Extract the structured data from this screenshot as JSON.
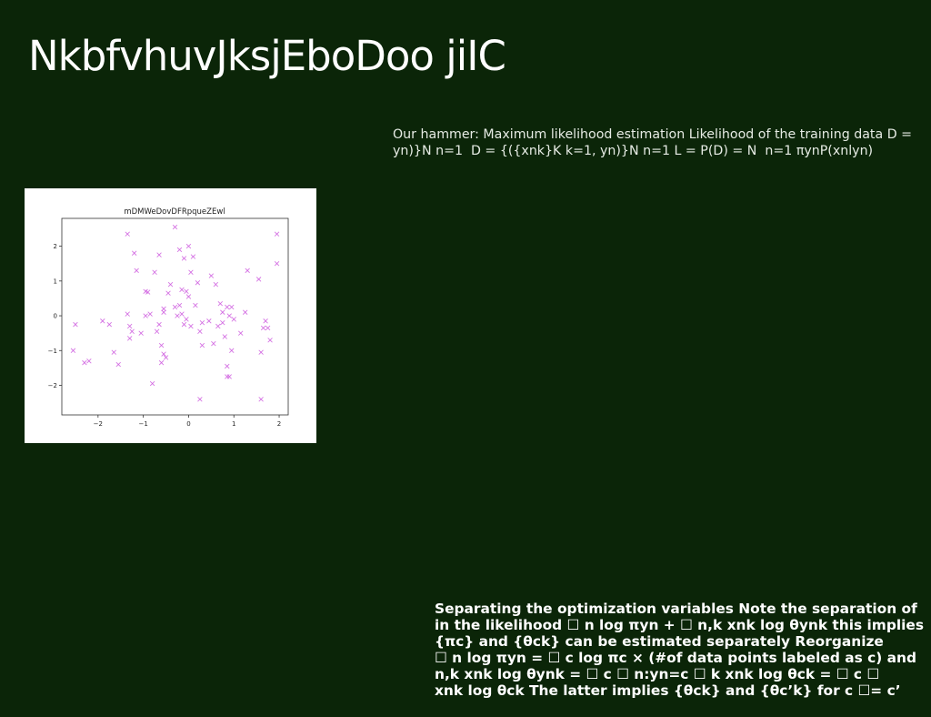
{
  "slide": {
    "title": "NkbfvhuvJksjEboDoo jiIC",
    "top_text": "Our hammer: Maximum likelihood estimation Likelihood of the training data D = yn)}N n=1 ⁠ D = {({xnk}K k=1, yn)}N n=1 L = P(D) = N ⁠ n=1 πynP(xnlyn)",
    "bottom_text_lines": [
      "Separating the optimization variables Note the separation of",
      "in the likelihood ☐ n log πyn + ☐ n,k xnk log θynk this implies",
      "{πc} and {θck} can be estimated separately Reorganize",
      "☐ n log πyn = ☐ c log πc × (#of data points labeled as c) and",
      "n,k xnk log θynk = ☐ c ☐ n:yn=c ☐ k xnk log θck = ☐ c ☐",
      "xnk log θck The latter implies {θck} and {θc’k} for c ☐= c’"
    ]
  },
  "colors": {
    "background": "#0b2508",
    "marker": "#cc55dd"
  },
  "chart_data": {
    "type": "scatter",
    "title": "mDMWeDovDFRpqueZEwl",
    "xlim": [
      -2.8,
      2.2
    ],
    "ylim": [
      -2.85,
      2.8
    ],
    "x_ticks": [
      -2,
      -1,
      0,
      1,
      2
    ],
    "y_ticks": [
      -2,
      -1,
      0,
      1,
      2
    ],
    "tick_labels_x": [
      "−2",
      "−1",
      "0",
      "1",
      "2"
    ],
    "tick_labels_y": [
      "−2",
      "−1",
      "0",
      "1",
      "2"
    ],
    "marker": "x",
    "grid": false,
    "points": [
      [
        -2.5,
        -0.25
      ],
      [
        -2.55,
        -1.0
      ],
      [
        -2.3,
        -1.35
      ],
      [
        -2.2,
        -1.3
      ],
      [
        -1.9,
        -0.15
      ],
      [
        -1.75,
        -0.25
      ],
      [
        -1.65,
        -1.05
      ],
      [
        -1.55,
        -1.4
      ],
      [
        -1.35,
        0.05
      ],
      [
        -1.3,
        -0.65
      ],
      [
        -1.3,
        -0.3
      ],
      [
        -1.25,
        -0.45
      ],
      [
        -1.2,
        1.8
      ],
      [
        -1.15,
        1.3
      ],
      [
        -1.35,
        2.35
      ],
      [
        -1.05,
        -0.5
      ],
      [
        -0.95,
        0.0
      ],
      [
        -0.95,
        0.7
      ],
      [
        -0.9,
        0.68
      ],
      [
        -0.85,
        0.05
      ],
      [
        -0.8,
        -1.95
      ],
      [
        -0.75,
        1.25
      ],
      [
        -0.7,
        -0.45
      ],
      [
        -0.65,
        1.75
      ],
      [
        -0.65,
        -0.25
      ],
      [
        -0.6,
        -0.85
      ],
      [
        -0.55,
        -1.1
      ],
      [
        -0.6,
        -1.35
      ],
      [
        -0.55,
        0.2
      ],
      [
        -0.5,
        -1.2
      ],
      [
        -0.45,
        0.65
      ],
      [
        -0.4,
        0.9
      ],
      [
        -0.3,
        2.55
      ],
      [
        -0.3,
        0.25
      ],
      [
        -0.25,
        0.0
      ],
      [
        -0.2,
        0.3
      ],
      [
        -0.2,
        1.9
      ],
      [
        -0.15,
        0.05
      ],
      [
        -0.15,
        0.75
      ],
      [
        -0.1,
        1.65
      ],
      [
        -0.05,
        0.7
      ],
      [
        0.0,
        2.0
      ],
      [
        -0.05,
        -0.1
      ],
      [
        0.05,
        1.25
      ],
      [
        0.05,
        -0.3
      ],
      [
        0.1,
        1.7
      ],
      [
        0.15,
        0.3
      ],
      [
        0.2,
        0.95
      ],
      [
        0.25,
        -0.45
      ],
      [
        0.3,
        -0.2
      ],
      [
        0.3,
        -0.85
      ],
      [
        0.25,
        -2.4
      ],
      [
        0.45,
        -0.15
      ],
      [
        0.5,
        1.15
      ],
      [
        0.55,
        -0.8
      ],
      [
        0.6,
        0.9
      ],
      [
        0.65,
        -0.3
      ],
      [
        0.7,
        0.35
      ],
      [
        0.75,
        -0.2
      ],
      [
        0.75,
        0.1
      ],
      [
        0.8,
        -0.6
      ],
      [
        0.85,
        -1.45
      ],
      [
        0.85,
        -1.75
      ],
      [
        0.9,
        -1.75
      ],
      [
        0.9,
        0.0
      ],
      [
        0.95,
        -1.0
      ],
      [
        0.95,
        0.25
      ],
      [
        1.0,
        -0.1
      ],
      [
        1.15,
        -0.5
      ],
      [
        1.25,
        0.1
      ],
      [
        1.3,
        1.3
      ],
      [
        1.55,
        1.05
      ],
      [
        1.6,
        -1.05
      ],
      [
        1.6,
        -2.4
      ],
      [
        1.65,
        -0.35
      ],
      [
        1.7,
        -0.15
      ],
      [
        1.75,
        -0.35
      ],
      [
        1.8,
        -0.7
      ],
      [
        1.95,
        2.35
      ],
      [
        1.95,
        1.5
      ],
      [
        0.85,
        0.25
      ],
      [
        -0.55,
        0.1
      ],
      [
        -0.1,
        -0.25
      ],
      [
        0.0,
        0.55
      ]
    ]
  }
}
